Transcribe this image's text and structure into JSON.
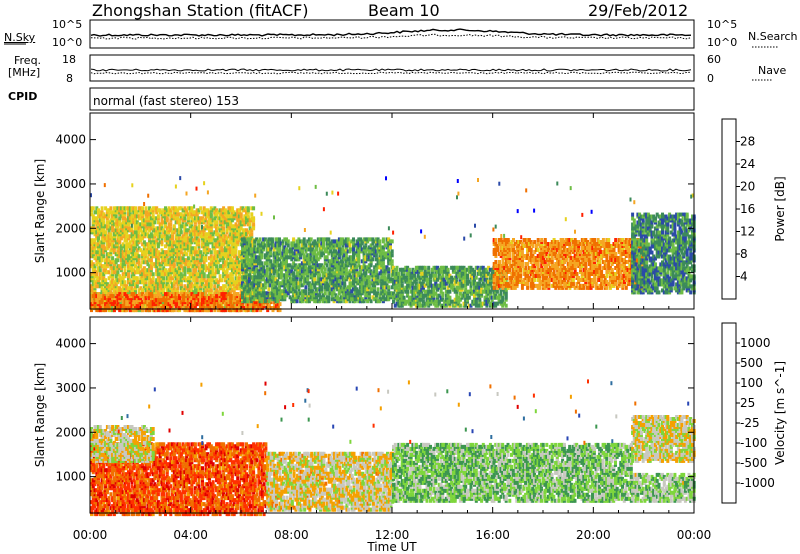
{
  "header": {
    "station": "Zhongshan Station (fitACF)",
    "beam": "Beam 10",
    "date": "29/Feb/2012"
  },
  "strip_labels": {
    "nsky": "N.Sky",
    "nsky_max": "10^5",
    "nsky_min": "10^0",
    "nsearch": "N.Search",
    "nsearch_max": "10^5",
    "nsearch_min": "10^0",
    "freq_line1": "Freq.",
    "freq_line2": "[MHz]",
    "freq_max": "18",
    "freq_min": "8",
    "nave": "Nave",
    "nave_max": "60",
    "nave_min": "0",
    "cpid": "CPID",
    "cpid_value": "normal (fast stereo) 153"
  },
  "chart_data": [
    {
      "type": "heatmap",
      "title": "",
      "xlabel": "Time UT",
      "ylabel": "Slant Range [km]",
      "xlim": [
        "00:00",
        "24:00"
      ],
      "ylim": [
        180,
        4600
      ],
      "x_ticks": [
        "00:00",
        "04:00",
        "08:00",
        "12:00",
        "16:00",
        "20:00",
        "00:00"
      ],
      "y_ticks": [
        1000,
        2000,
        3000,
        4000
      ],
      "colorbar": {
        "label": "Power [dB]",
        "ticks": [
          4,
          8,
          12,
          16,
          20,
          24,
          28
        ],
        "colors": [
          "#0000ff",
          "#2b4aa8",
          "#3c8a5a",
          "#6ebd45",
          "#e6d21e",
          "#f5a623",
          "#f07000",
          "#ff2000"
        ],
        "range": [
          0,
          32
        ]
      },
      "bands": [
        {
          "t_start": 0.0,
          "t_end": 6.5,
          "r_min": 200,
          "r_max": 2500,
          "level": 18
        },
        {
          "t_start": 0.0,
          "t_end": 7.5,
          "r_min": 200,
          "r_max": 600,
          "level": 26
        },
        {
          "t_start": 6.0,
          "t_end": 12.0,
          "r_min": 400,
          "r_max": 1800,
          "level": 12
        },
        {
          "t_start": 12.0,
          "t_end": 16.5,
          "r_min": 300,
          "r_max": 1200,
          "level": 12
        },
        {
          "t_start": 16.0,
          "t_end": 22.0,
          "r_min": 700,
          "r_max": 1800,
          "level": 24
        },
        {
          "t_start": 21.5,
          "t_end": 24.0,
          "r_min": 600,
          "r_max": 2400,
          "level": 10
        }
      ]
    },
    {
      "type": "heatmap",
      "title": "",
      "xlabel": "Time UT",
      "ylabel": "Slant Range [km]",
      "xlim": [
        "00:00",
        "24:00"
      ],
      "ylim": [
        180,
        4600
      ],
      "x_ticks": [
        "00:00",
        "04:00",
        "08:00",
        "12:00",
        "16:00",
        "20:00",
        "00:00"
      ],
      "y_ticks": [
        1000,
        2000,
        3000,
        4000
      ],
      "colorbar": {
        "label": "Velocity [m s^-1]",
        "ticks": [
          1000,
          500,
          100,
          25,
          -25,
          -100,
          -500,
          -1000
        ],
        "colors": [
          "#2846b4",
          "#2e6ea0",
          "#3c9650",
          "#7ed63c",
          "#c8c8c0",
          "#f5a000",
          "#f07000",
          "#ff3000",
          "#e00000"
        ],
        "range": [
          -1200,
          1200
        ]
      },
      "bands": [
        {
          "t_start": 0.0,
          "t_end": 7.0,
          "r_min": 200,
          "r_max": 1800,
          "level": 700
        },
        {
          "t_start": 0.0,
          "t_end": 2.5,
          "r_min": 1400,
          "r_max": 2200,
          "level": 0
        },
        {
          "t_start": 7.0,
          "t_end": 12.0,
          "r_min": 300,
          "r_max": 1600,
          "level": 80
        },
        {
          "t_start": 12.0,
          "t_end": 21.5,
          "r_min": 500,
          "r_max": 1800,
          "level": -300
        },
        {
          "t_start": 21.5,
          "t_end": 24.0,
          "r_min": 1400,
          "r_max": 2400,
          "level": 0
        },
        {
          "t_start": 21.5,
          "t_end": 24.0,
          "r_min": 500,
          "r_max": 1100,
          "level": -200
        }
      ]
    }
  ]
}
